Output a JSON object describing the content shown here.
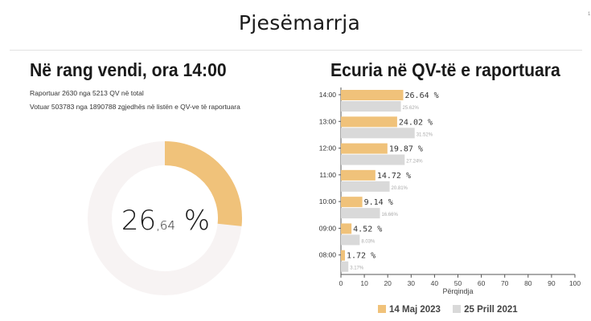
{
  "header": {
    "title": "Pjesëmarrja",
    "page_marker": "1"
  },
  "national": {
    "title": "Në rang vendi, ora 14:00",
    "reported_line": "Raportuar 2630 nga 5213 QV në total",
    "votes_line": "Votuar 503783 nga 1890788 zgjedhës në listën e QV-ve të raportuara",
    "turnout_int": "26",
    "turnout_dec": ",64",
    "turnout_unit": " %",
    "turnout_fraction": 0.2664,
    "colors": {
      "arc": "#f0c27a",
      "track": "#f7f3f3"
    }
  },
  "chart_data": {
    "type": "bar",
    "orientation": "horizontal",
    "title": "Ecuria në QV-të e raportuara",
    "xlabel": "Përqindja",
    "ylabel": "",
    "xlim": [
      0,
      100
    ],
    "xticks": [
      0,
      10,
      20,
      30,
      40,
      50,
      60,
      70,
      80,
      90,
      100
    ],
    "categories": [
      "14:00",
      "13:00",
      "12:00",
      "11:00",
      "10:00",
      "09:00",
      "08:00"
    ],
    "series": [
      {
        "name": "14 Maj 2023",
        "color": "#f0c27a",
        "values": [
          26.64,
          24.02,
          19.87,
          14.72,
          9.14,
          4.52,
          1.72
        ],
        "labels": [
          "26.64 %",
          "24.02 %",
          "19.87 %",
          "14.72 %",
          "9.14 %",
          "4.52 %",
          "1.72 %"
        ]
      },
      {
        "name": "25 Prill 2021",
        "color": "#d9d9d9",
        "values": [
          25.62,
          31.52,
          27.24,
          20.81,
          16.66,
          8.03,
          3.17
        ],
        "labels": [
          "25.62%",
          "31.52%",
          "27.24%",
          "20.81%",
          "16.66%",
          "8.03%",
          "3.17%"
        ]
      }
    ],
    "grid": false,
    "legend": "bottom"
  }
}
